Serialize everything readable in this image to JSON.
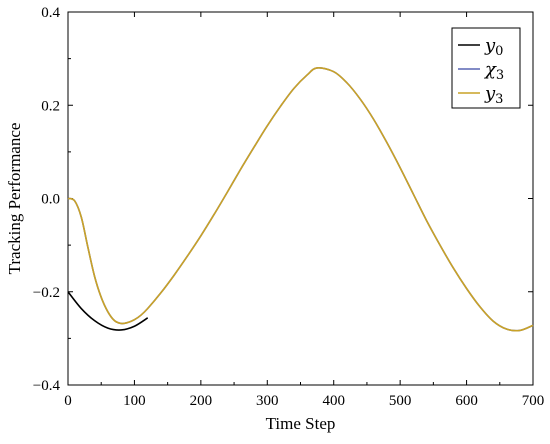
{
  "chart_data": {
    "type": "line",
    "xlabel": "Time Step",
    "ylabel": "Tracking Performance",
    "xlim": [
      0,
      700
    ],
    "ylim": [
      -0.4,
      0.4
    ],
    "x_ticks": [
      0,
      100,
      200,
      300,
      400,
      500,
      600,
      700
    ],
    "y_ticks": [
      -0.4,
      -0.2,
      0.0,
      0.2,
      0.4
    ],
    "x_tick_labels": [
      "0",
      "100",
      "200",
      "300",
      "400",
      "500",
      "600",
      "700"
    ],
    "y_tick_labels": [
      "−0.4",
      "−0.2",
      "0.0",
      "0.2",
      "0.4"
    ],
    "grid": false,
    "legend_position": "top-right",
    "series": [
      {
        "name": "y0",
        "legend_base": "y",
        "legend_sub": "0",
        "color": "#000000",
        "x": [
          0,
          20,
          40,
          60,
          80,
          100,
          120
        ],
        "y": [
          -0.2,
          -0.236,
          -0.262,
          -0.278,
          -0.282,
          -0.274,
          -0.256
        ]
      },
      {
        "name": "χ3",
        "legend_base": "χ",
        "legend_sub": "3",
        "color": "#5865b4",
        "x": [
          0,
          10,
          20,
          30,
          40,
          50,
          60,
          70,
          80,
          90,
          100,
          110,
          120,
          140,
          160,
          180,
          200,
          220,
          240,
          260,
          280,
          300,
          320,
          340,
          360,
          375,
          400,
          420,
          440,
          460,
          480,
          500,
          520,
          540,
          560,
          580,
          600,
          620,
          640,
          660,
          680,
          700
        ],
        "y": [
          0.0,
          -0.005,
          -0.04,
          -0.105,
          -0.167,
          -0.212,
          -0.243,
          -0.262,
          -0.268,
          -0.266,
          -0.26,
          -0.25,
          -0.236,
          -0.202,
          -0.164,
          -0.123,
          -0.08,
          -0.034,
          0.014,
          0.063,
          0.11,
          0.156,
          0.198,
          0.236,
          0.265,
          0.28,
          0.272,
          0.248,
          0.213,
          0.17,
          0.12,
          0.066,
          0.009,
          -0.048,
          -0.1,
          -0.149,
          -0.193,
          -0.232,
          -0.263,
          -0.28,
          -0.283,
          -0.272
        ]
      },
      {
        "name": "y3",
        "legend_base": "y",
        "legend_sub": "3",
        "color": "#c9a227",
        "x": [
          0,
          10,
          20,
          30,
          40,
          50,
          60,
          70,
          80,
          90,
          100,
          110,
          120,
          140,
          160,
          180,
          200,
          220,
          240,
          260,
          280,
          300,
          320,
          340,
          360,
          375,
          400,
          420,
          440,
          460,
          480,
          500,
          520,
          540,
          560,
          580,
          600,
          620,
          640,
          660,
          680,
          700
        ],
        "y": [
          0.0,
          -0.005,
          -0.04,
          -0.105,
          -0.167,
          -0.212,
          -0.243,
          -0.262,
          -0.268,
          -0.266,
          -0.26,
          -0.25,
          -0.236,
          -0.202,
          -0.164,
          -0.123,
          -0.08,
          -0.034,
          0.014,
          0.063,
          0.11,
          0.156,
          0.198,
          0.236,
          0.265,
          0.28,
          0.272,
          0.248,
          0.213,
          0.17,
          0.12,
          0.066,
          0.009,
          -0.048,
          -0.1,
          -0.149,
          -0.193,
          -0.232,
          -0.263,
          -0.28,
          -0.283,
          -0.272
        ]
      }
    ]
  }
}
